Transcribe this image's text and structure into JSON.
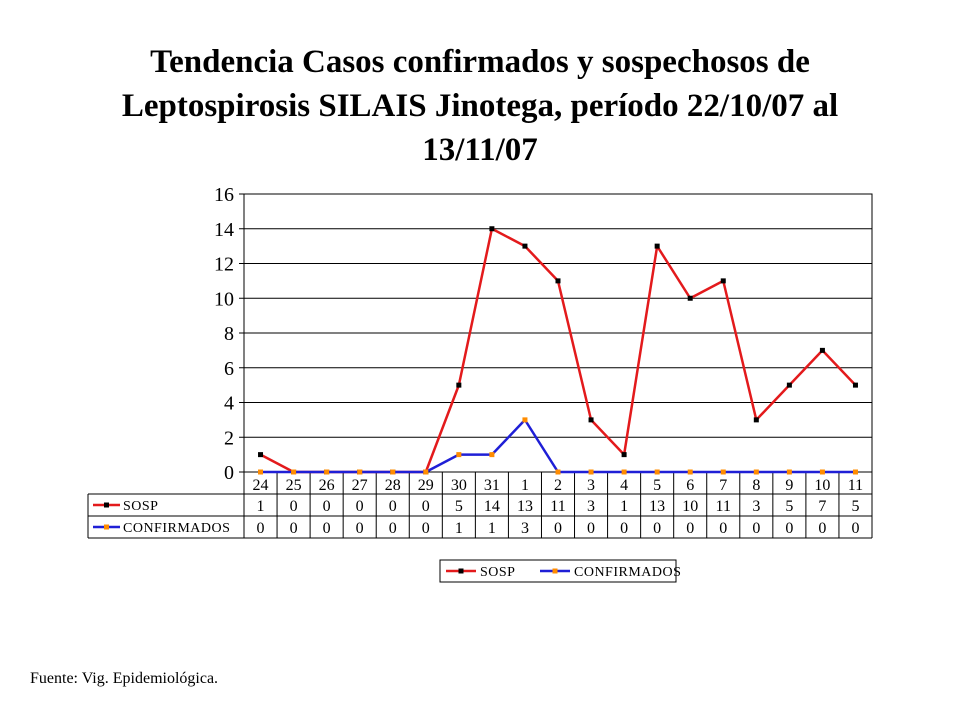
{
  "title": "Tendencia Casos confirmados y sospechosos de Leptospirosis SILAIS Jinotega, período 22/10/07 al 13/11/07",
  "source": "Fuente: Vig. Epidemiológica.",
  "chart_data": {
    "type": "line",
    "categories": [
      "24",
      "25",
      "26",
      "27",
      "28",
      "29",
      "30",
      "31",
      "1",
      "2",
      "3",
      "4",
      "5",
      "6",
      "7",
      "8",
      "9",
      "10",
      "11"
    ],
    "series": [
      {
        "name": "SOSP",
        "color": "#e31a1c",
        "marker_color": "#000000",
        "values": [
          1,
          0,
          0,
          0,
          0,
          0,
          5,
          14,
          13,
          11,
          3,
          1,
          13,
          10,
          11,
          3,
          5,
          7,
          5
        ]
      },
      {
        "name": "CONFIRMADOS",
        "color": "#1f1fd6",
        "marker_color": "#ff8c00",
        "values": [
          0,
          0,
          0,
          0,
          0,
          0,
          1,
          1,
          3,
          0,
          0,
          0,
          0,
          0,
          0,
          0,
          0,
          0,
          0
        ]
      }
    ],
    "yticks": [
      "0",
      "2",
      "4",
      "6",
      "8",
      "10",
      "12",
      "14",
      "16"
    ],
    "ylim": [
      0,
      16
    ],
    "grid": true,
    "data_table": true,
    "legend_placement": "bottom"
  }
}
